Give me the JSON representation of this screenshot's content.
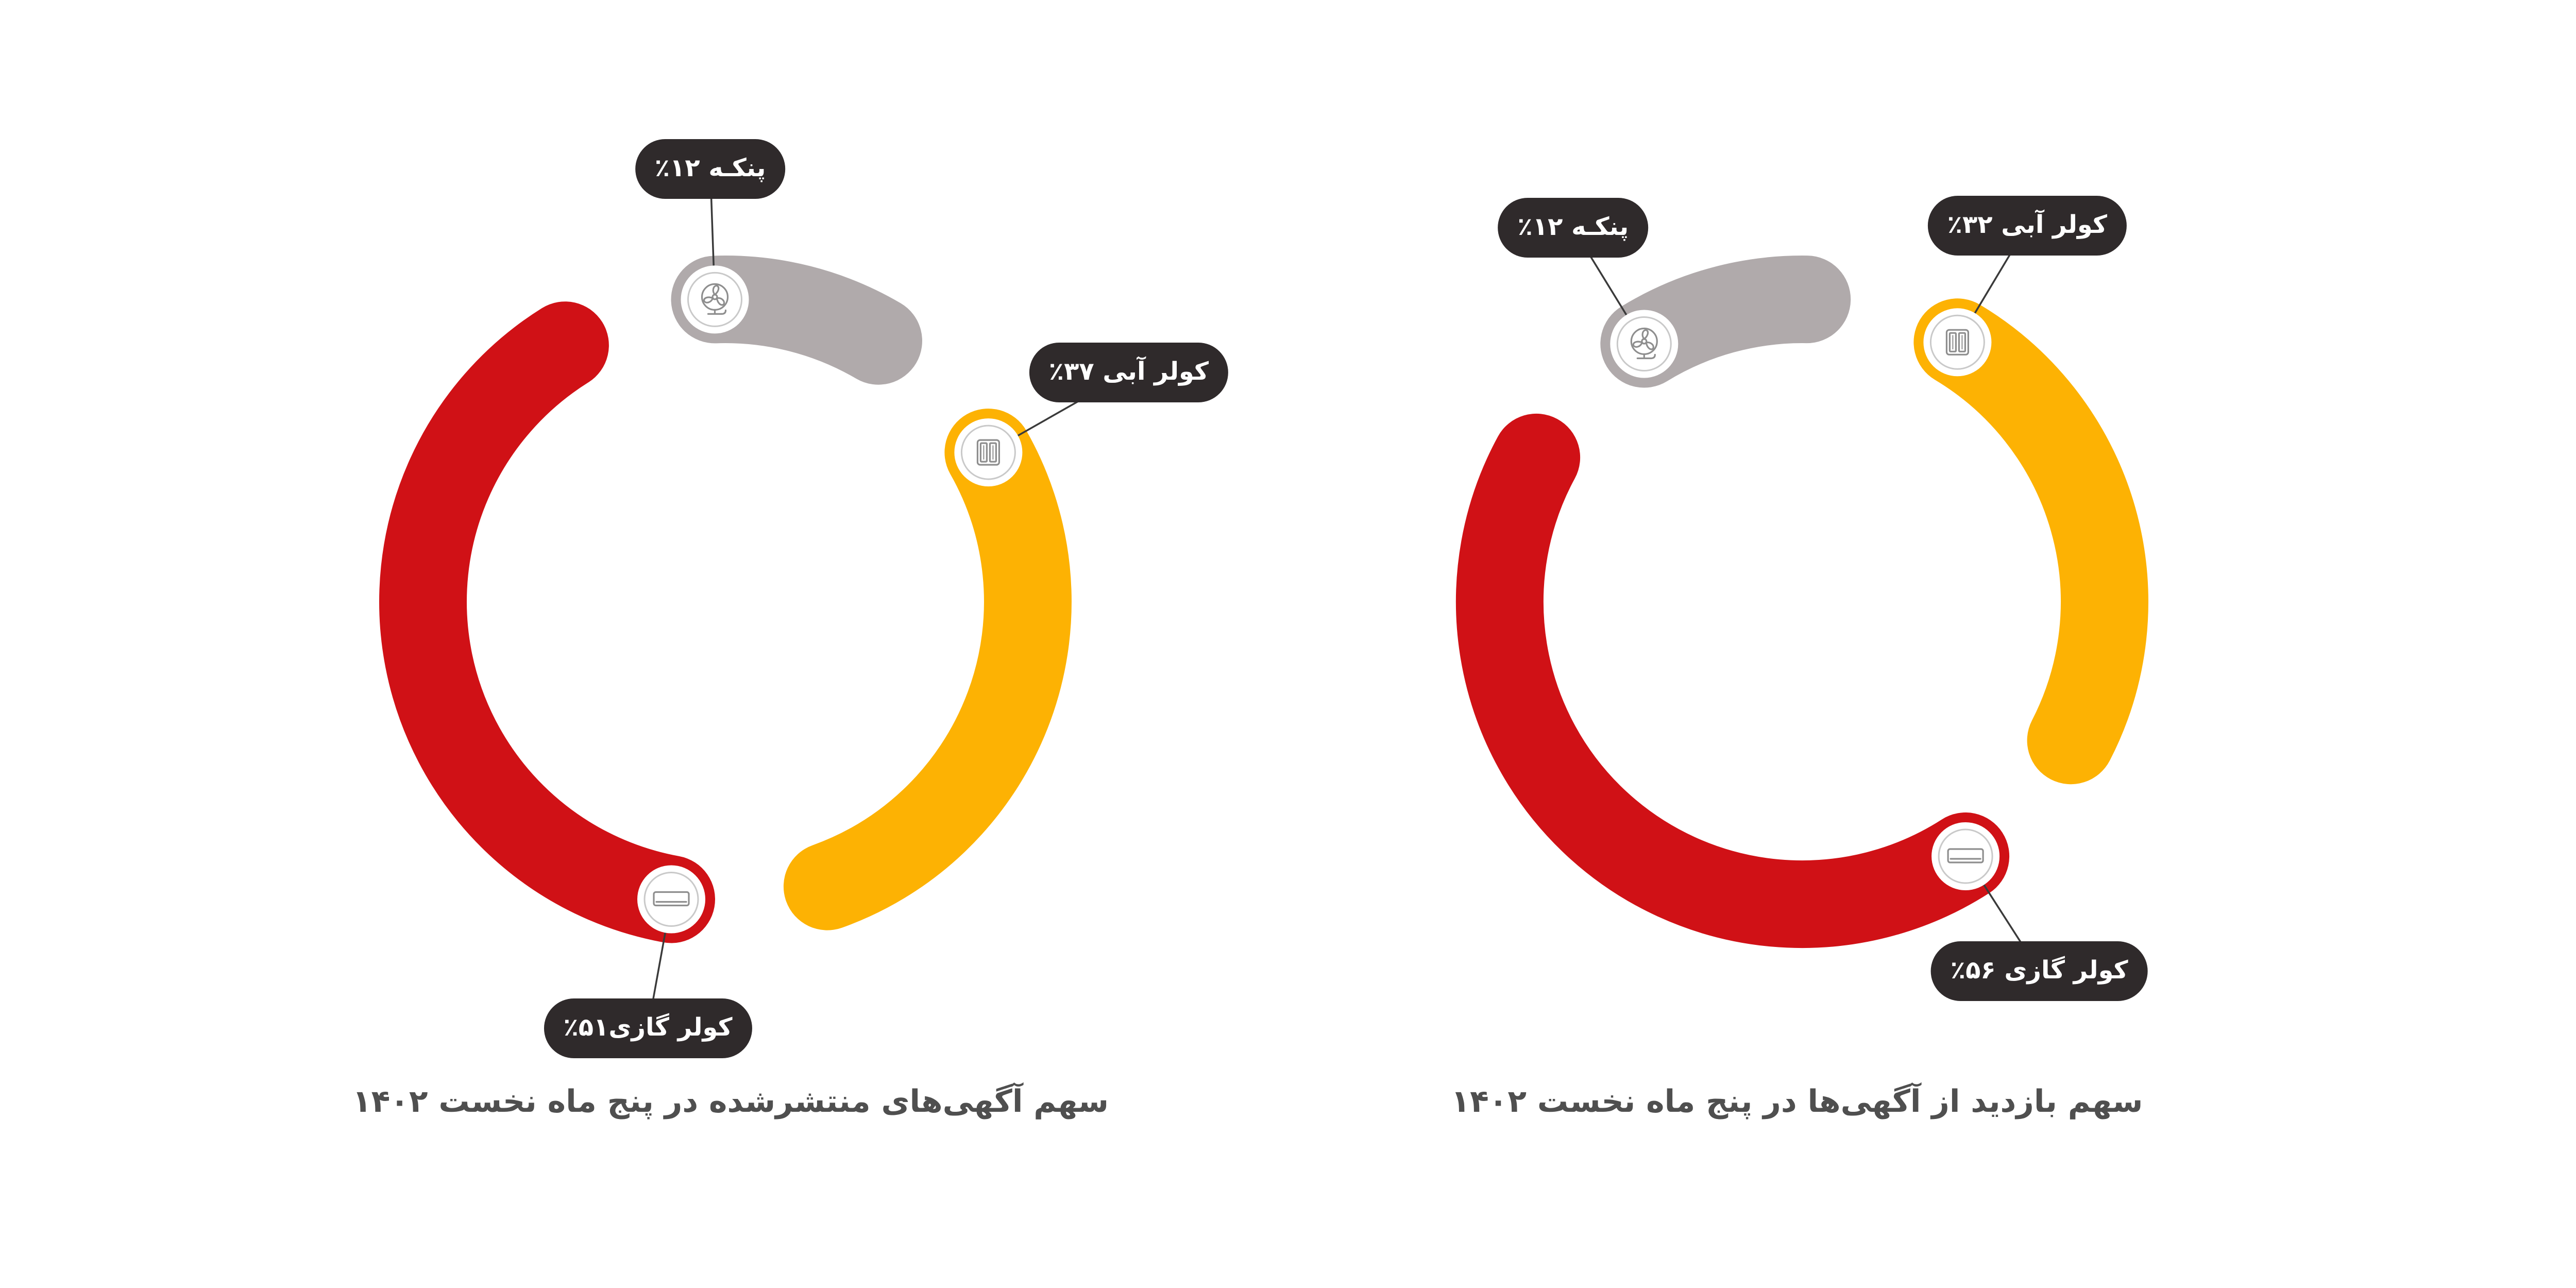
{
  "chart_data": [
    {
      "type": "pie",
      "donut": true,
      "title": "سهم آگهی‌های منتشرشده در پنج ماه نخست ۱۴۰۲",
      "values": [
        12,
        37,
        51
      ],
      "labels": [
        "پنکـه ۱۲٪",
        "کولر آبی ۳۷٪",
        "کولر گازی۵۱٪"
      ],
      "colors": [
        "#b0aaab",
        "#fdb203",
        "#d01116"
      ],
      "icons": [
        "fan-icon",
        "evaporative-cooler-icon",
        "air-conditioner-icon"
      ]
    },
    {
      "type": "pie",
      "donut": true,
      "title": "سهم بازدید از آگهی‌ها در پنج ماه نخست ۱۴۰۲",
      "values": [
        12,
        32,
        56
      ],
      "labels": [
        "پنکـه ۱۲٪",
        "کولر آبی ۳۲٪",
        "کولر گازی ۵۶٪"
      ],
      "colors": [
        "#b0aaab",
        "#fdb203",
        "#d01116"
      ],
      "icons": [
        "fan-icon",
        "evaporative-cooler-icon",
        "air-conditioner-icon"
      ]
    }
  ],
  "colors": {
    "label_background": "#2f2a2b",
    "label_text": "#ffffff",
    "title_text": "#4f4f4f",
    "leader_line": "#3a3a3a",
    "icon_stroke": "#8e8e8e"
  }
}
